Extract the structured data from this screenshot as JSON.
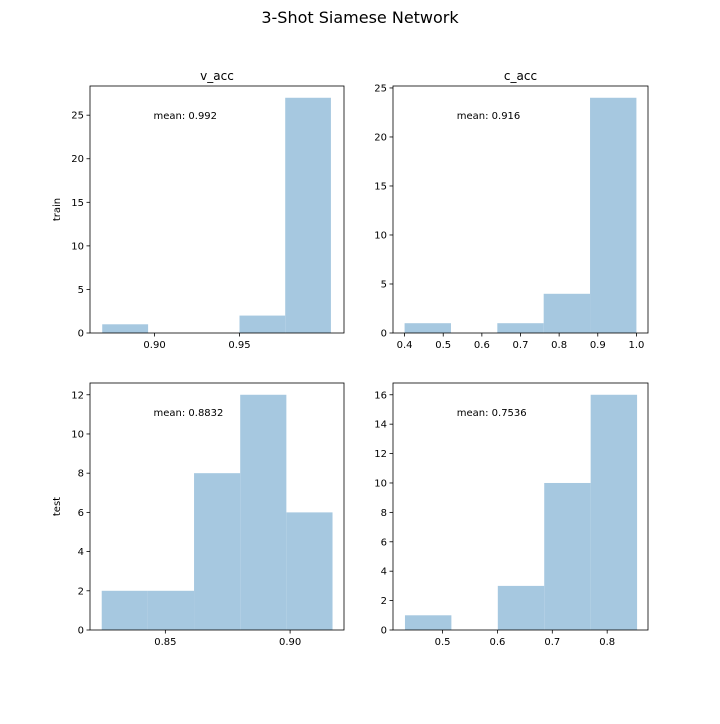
{
  "figure": {
    "title": "3-Shot Siamese Network",
    "bar_color": "#a6c8e0"
  },
  "chart_data": [
    {
      "type": "bar",
      "subplot": "train-v_acc",
      "title": "v_acc",
      "ylabel": "train",
      "annotation": "mean: 0.992",
      "bins": [
        {
          "x0": 0.8692,
          "x1": 0.8962,
          "count": 1
        },
        {
          "x0": 0.8962,
          "x1": 0.9231,
          "count": 0
        },
        {
          "x0": 0.9231,
          "x1": 0.95,
          "count": 0
        },
        {
          "x0": 0.95,
          "x1": 0.9769,
          "count": 2
        },
        {
          "x0": 0.9769,
          "x1": 1.0038,
          "count": 27
        }
      ],
      "xlim": [
        0.862,
        1.0115
      ],
      "ylim": [
        0,
        28.35
      ],
      "xticks": [
        0.9,
        0.95
      ],
      "xtick_labels": [
        "0.90",
        "0.95"
      ],
      "yticks": [
        0,
        5,
        10,
        15,
        20,
        25
      ],
      "ytick_labels": [
        "0",
        "5",
        "10",
        "15",
        "20",
        "25"
      ]
    },
    {
      "type": "bar",
      "subplot": "train-c_acc",
      "title": "c_acc",
      "ylabel": "",
      "annotation": "mean: 0.916",
      "bins": [
        {
          "x0": 0.4,
          "x1": 0.52,
          "count": 1
        },
        {
          "x0": 0.52,
          "x1": 0.64,
          "count": 0
        },
        {
          "x0": 0.64,
          "x1": 0.76,
          "count": 1
        },
        {
          "x0": 0.76,
          "x1": 0.88,
          "count": 4
        },
        {
          "x0": 0.88,
          "x1": 1.0,
          "count": 24
        }
      ],
      "xlim": [
        0.37,
        1.03
      ],
      "ylim": [
        0,
        25.2
      ],
      "xticks": [
        0.4,
        0.5,
        0.6,
        0.7,
        0.8,
        0.9,
        1.0
      ],
      "xtick_labels": [
        "0.4",
        "0.5",
        "0.6",
        "0.7",
        "0.8",
        "0.9",
        "1.0"
      ],
      "yticks": [
        0,
        5,
        10,
        15,
        20,
        25
      ],
      "ytick_labels": [
        "0",
        "5",
        "10",
        "15",
        "20",
        "25"
      ]
    },
    {
      "type": "bar",
      "subplot": "test-v_acc",
      "title": "",
      "ylabel": "test",
      "annotation": "mean: 0.8832",
      "bins": [
        {
          "x0": 0.8245,
          "x1": 0.843,
          "count": 2
        },
        {
          "x0": 0.843,
          "x1": 0.8615,
          "count": 2
        },
        {
          "x0": 0.8615,
          "x1": 0.88,
          "count": 8
        },
        {
          "x0": 0.88,
          "x1": 0.8985,
          "count": 12
        },
        {
          "x0": 0.8985,
          "x1": 0.917,
          "count": 6
        }
      ],
      "xlim": [
        0.8198,
        0.9216
      ],
      "ylim": [
        0,
        12.6
      ],
      "xticks": [
        0.85,
        0.9
      ],
      "xtick_labels": [
        "0.85",
        "0.90"
      ],
      "yticks": [
        0,
        2,
        4,
        6,
        8,
        10,
        12
      ],
      "ytick_labels": [
        "0",
        "2",
        "4",
        "6",
        "8",
        "10",
        "12"
      ]
    },
    {
      "type": "bar",
      "subplot": "test-c_acc",
      "title": "",
      "ylabel": "",
      "annotation": "mean: 0.7536",
      "bins": [
        {
          "x0": 0.4315,
          "x1": 0.5161,
          "count": 1
        },
        {
          "x0": 0.5161,
          "x1": 0.6007,
          "count": 0
        },
        {
          "x0": 0.6007,
          "x1": 0.6853,
          "count": 3
        },
        {
          "x0": 0.6853,
          "x1": 0.7699,
          "count": 10
        },
        {
          "x0": 0.7699,
          "x1": 0.8545,
          "count": 16
        }
      ],
      "xlim": [
        0.4097,
        0.8744
      ],
      "ylim": [
        0,
        16.8
      ],
      "xticks": [
        0.5,
        0.6,
        0.7,
        0.8
      ],
      "xtick_labels": [
        "0.5",
        "0.6",
        "0.7",
        "0.8"
      ],
      "yticks": [
        0,
        2,
        4,
        6,
        8,
        10,
        12,
        14,
        16
      ],
      "ytick_labels": [
        "0",
        "2",
        "4",
        "6",
        "8",
        "10",
        "12",
        "14",
        "16"
      ]
    }
  ]
}
